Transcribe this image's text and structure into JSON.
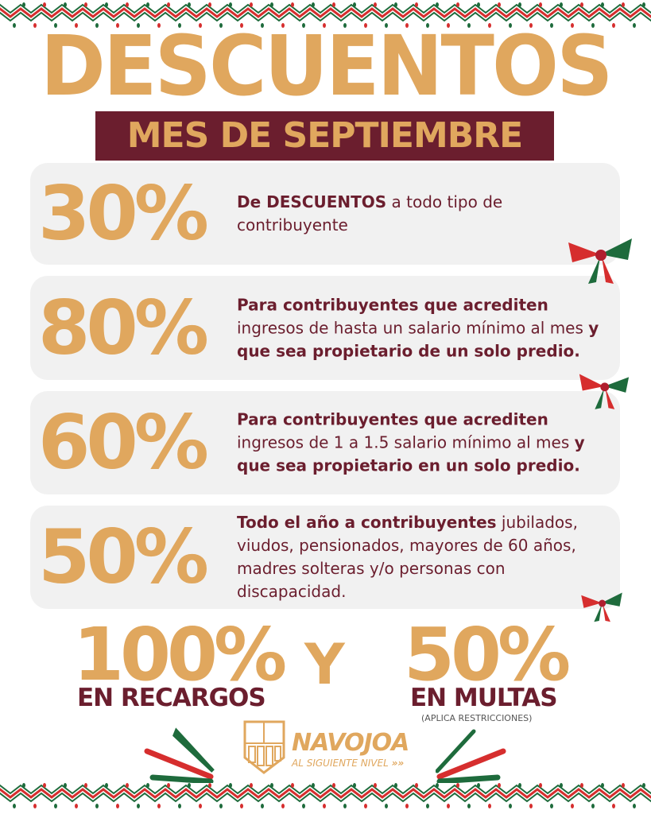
{
  "title": "DESCUENTOS",
  "banner": "MES DE SEPTIEMBRE",
  "colors": {
    "gold": "#e0a75e",
    "maroon": "#6b1e2e",
    "green": "#1e6b3c",
    "red": "#d62e2e",
    "card": "#f1f1f1"
  },
  "cards": [
    {
      "percent": "30%",
      "bold1": "De DESCUENTOS",
      "text1": " a todo tipo de contribuyente",
      "bold2": ""
    },
    {
      "percent": "80%",
      "bold1": "Para contribuyentes que acrediten",
      "text1": " ingresos de hasta un salario mínimo al mes ",
      "bold2": "y que sea propietario de un solo predio."
    },
    {
      "percent": "60%",
      "bold1": "Para contribuyentes que acrediten",
      "text1": " ingresos de 1 a 1.5 salario mínimo al mes ",
      "bold2": "y que sea propietario en un solo predio."
    },
    {
      "percent": "50%",
      "bold1": "Todo el año a contribuyentes",
      "text1": " jubilados, viudos, pensionados, mayores de 60 años, madres solteras y/o personas con discapacidad.",
      "bold2": ""
    }
  ],
  "bottom": {
    "left_pct": "100%",
    "left_label": "EN RECARGOS",
    "connector": "Y",
    "right_pct": "50%",
    "right_label": "EN MULTAS",
    "note": "(APLICA RESTRICCIONES)"
  },
  "logo": {
    "name": "NAVOJOA",
    "tagline": "AL SIGUIENTE NIVEL"
  }
}
